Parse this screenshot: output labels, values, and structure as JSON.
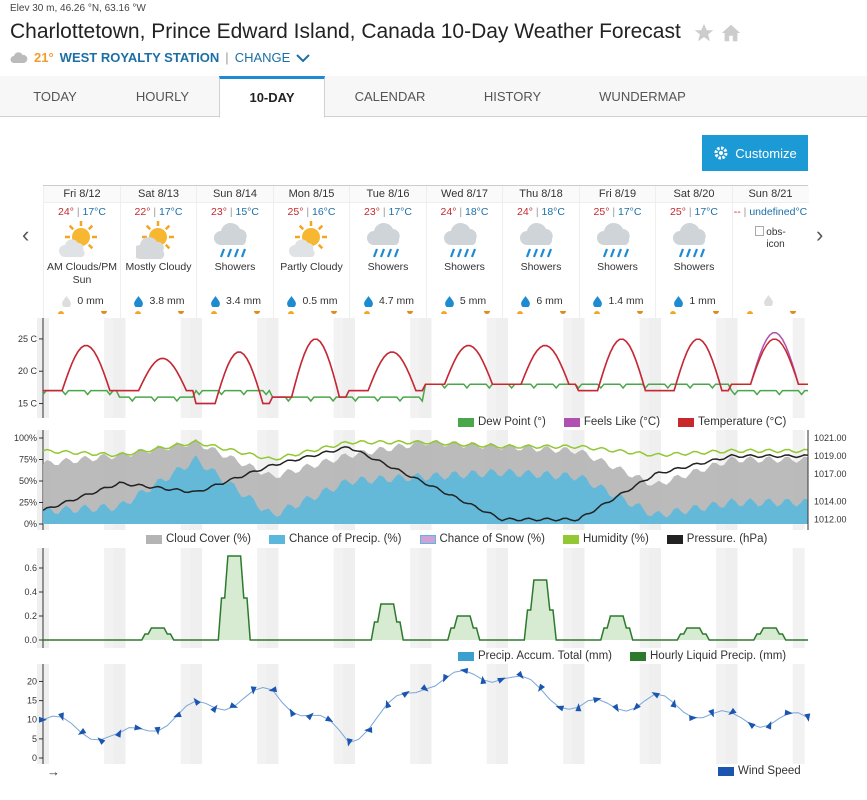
{
  "header": {
    "elevation": "Elev 30 m, 46.26 °N, 63.16 °W",
    "title": "Charlottetown, Prince Edward Island, Canada 10-Day Weather Forecast",
    "current_temp": "21°",
    "station": "WEST ROYALTY STATION",
    "separator": "|",
    "change_label": "CHANGE"
  },
  "tabs": [
    "TODAY",
    "HOURLY",
    "10-DAY",
    "CALENDAR",
    "HISTORY",
    "WUNDERMAP"
  ],
  "active_tab": "10-DAY",
  "customize_label": "Customize",
  "days": [
    {
      "date": "Fri 8/12",
      "hi": "24°",
      "lo": "17°C",
      "cond": "AM Clouds/PM Sun",
      "icon": "sun-cloud",
      "precip": "0 mm",
      "wet": false
    },
    {
      "date": "Sat 8/13",
      "hi": "22°",
      "lo": "17°C",
      "cond": "Mostly Cloudy",
      "icon": "cloud-sun",
      "precip": "3.8 mm",
      "wet": true
    },
    {
      "date": "Sun 8/14",
      "hi": "23°",
      "lo": "15°C",
      "cond": "Showers",
      "icon": "rain",
      "precip": "3.4 mm",
      "wet": true
    },
    {
      "date": "Mon 8/15",
      "hi": "25°",
      "lo": "16°C",
      "cond": "Partly Cloudy",
      "icon": "sun-cloud",
      "precip": "0.5 mm",
      "wet": true
    },
    {
      "date": "Tue 8/16",
      "hi": "23°",
      "lo": "17°C",
      "cond": "Showers",
      "icon": "rain",
      "precip": "4.7 mm",
      "wet": true
    },
    {
      "date": "Wed 8/17",
      "hi": "24°",
      "lo": "18°C",
      "cond": "Showers",
      "icon": "rain",
      "precip": "5 mm",
      "wet": true
    },
    {
      "date": "Thu 8/18",
      "hi": "24°",
      "lo": "18°C",
      "cond": "Showers",
      "icon": "rain",
      "precip": "6 mm",
      "wet": true
    },
    {
      "date": "Fri 8/19",
      "hi": "25°",
      "lo": "17°C",
      "cond": "Showers",
      "icon": "rain",
      "precip": "1.4 mm",
      "wet": true
    },
    {
      "date": "Sat 8/20",
      "hi": "25°",
      "lo": "17°C",
      "cond": "Showers",
      "icon": "rain",
      "precip": "1 mm",
      "wet": true
    },
    {
      "date": "Sun 8/21",
      "hi": "--",
      "lo": "undefined°C",
      "cond": "",
      "icon": "obs-icon",
      "precip": "",
      "wet": false,
      "broken_icon_alt": "obs-icon"
    }
  ],
  "charts": {
    "temperature": {
      "y_ticks": [
        "25 C",
        "20 C",
        "15 C"
      ],
      "legend": [
        "Dew Point (°)",
        "Feels Like (°C)",
        "Temperature (°C)"
      ],
      "colors": {
        "dew": "#4aa64a",
        "feels": "#b050b0",
        "temp": "#c8282c"
      }
    },
    "humidity": {
      "y_ticks_left": [
        "100%",
        "75%",
        "50%",
        "25%",
        "0%"
      ],
      "y_ticks_right": [
        "1021.00",
        "1019.00",
        "1017.00",
        "1014.00",
        "1012.00"
      ],
      "legend": [
        "Cloud Cover (%)",
        "Chance of Precip. (%)",
        "Chance of Snow (%)",
        "Humidity (%)",
        "Pressure. (hPa)"
      ],
      "colors": {
        "cloud": "#b4b4b4",
        "precip": "#5bb8dc",
        "snow": "#d0a0d8",
        "humidity": "#92c832",
        "pressure": "#222222"
      }
    },
    "precip": {
      "y_ticks": [
        "0.6",
        "0.4",
        "0.2",
        "0.0"
      ],
      "legend": [
        "Precip. Accum. Total (mm)",
        "Hourly Liquid Precip. (mm)"
      ],
      "colors": {
        "accum": "#3aa0d0",
        "hourly": "#2d7a2d"
      }
    },
    "wind": {
      "y_ticks": [
        "20",
        "15",
        "10",
        "5",
        "0"
      ],
      "legend": [
        "Wind Speed"
      ],
      "arrow_label": "→",
      "colors": {
        "wind": "#1a56b0",
        "line": "#7aa6d8"
      }
    }
  },
  "chart_data": [
    {
      "type": "line",
      "title": "",
      "ylabel": "",
      "ylim": [
        14,
        27
      ],
      "x": [
        "Fri 8/12",
        "Sat 8/13",
        "Sun 8/14",
        "Mon 8/15",
        "Tue 8/16",
        "Wed 8/17",
        "Thu 8/18",
        "Fri 8/19",
        "Sat 8/20",
        "Sun 8/21"
      ],
      "series": [
        {
          "name": "Temperature (°C)",
          "values": [
            24,
            22,
            23,
            25,
            23,
            24,
            24,
            25,
            25,
            25
          ],
          "min": [
            17,
            17,
            15,
            16,
            17,
            18,
            18,
            17,
            17,
            18
          ]
        },
        {
          "name": "Feels Like (°C)",
          "values": [
            24,
            22,
            23,
            25,
            23,
            24,
            24,
            25,
            25,
            26
          ]
        },
        {
          "name": "Dew Point (°)",
          "values": [
            17,
            16,
            17,
            16,
            16,
            18,
            18,
            18,
            18,
            17
          ]
        }
      ]
    },
    {
      "type": "area",
      "title": "",
      "ylim": [
        0,
        100
      ],
      "x": [
        "Fri 8/12",
        "Sat 8/13",
        "Sun 8/14",
        "Mon 8/15",
        "Tue 8/16",
        "Wed 8/17",
        "Thu 8/18",
        "Fri 8/19",
        "Sat 8/20",
        "Sun 8/21"
      ],
      "series": [
        {
          "name": "Cloud Cover (%)",
          "values": [
            70,
            80,
            95,
            55,
            80,
            95,
            90,
            85,
            45,
            75
          ]
        },
        {
          "name": "Chance of Precip. (%)",
          "values": [
            15,
            20,
            75,
            10,
            50,
            55,
            60,
            55,
            10,
            25
          ]
        },
        {
          "name": "Humidity (%)",
          "values": [
            85,
            80,
            95,
            75,
            95,
            95,
            90,
            90,
            80,
            85
          ]
        },
        {
          "name": "Pressure. (hPa)",
          "values": [
            1013,
            1016,
            1015,
            1018,
            1020,
            1016,
            1012,
            1012,
            1017,
            1019
          ],
          "axis": "right",
          "ylim": [
            1011.5,
            1021
          ]
        }
      ]
    },
    {
      "type": "area",
      "title": "",
      "ylim": [
        0,
        0.7
      ],
      "x": [
        "Fri 8/12",
        "Sat 8/13",
        "Sun 8/14",
        "Mon 8/15",
        "Tue 8/16",
        "Wed 8/17",
        "Thu 8/18",
        "Fri 8/19",
        "Sat 8/20",
        "Sun 8/21"
      ],
      "series": [
        {
          "name": "Hourly Liquid Precip. (mm)",
          "values": [
            0.0,
            0.1,
            0.7,
            0.0,
            0.3,
            0.2,
            0.5,
            0.2,
            0.1,
            0.1
          ]
        }
      ]
    },
    {
      "type": "line",
      "title": "",
      "ylim": [
        0,
        23
      ],
      "x": [
        "Fri 8/12",
        "Sat 8/13",
        "Sun 8/14",
        "Mon 8/15",
        "Tue 8/16",
        "Wed 8/17",
        "Thu 8/18",
        "Fri 8/19",
        "Sat 8/20",
        "Sun 8/21"
      ],
      "series": [
        {
          "name": "Wind Speed",
          "values": [
            10,
            5,
            13,
            17,
            5,
            20,
            22,
            13,
            15,
            10
          ]
        }
      ]
    }
  ]
}
